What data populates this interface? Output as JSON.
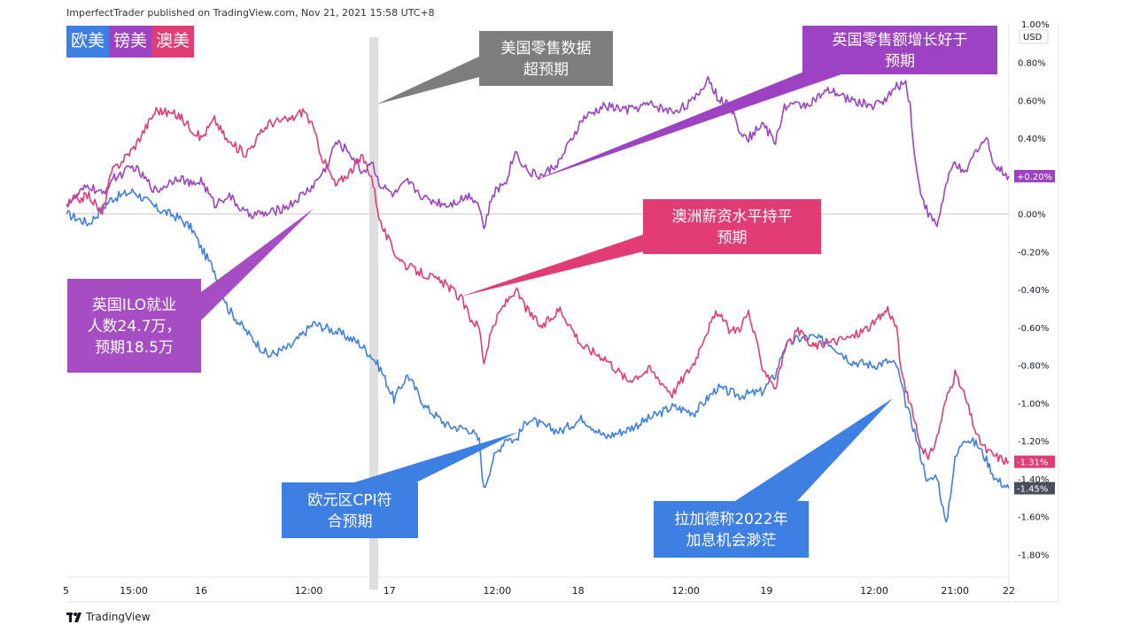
{
  "publisher": "ImperfectTrader published on TradingView.com, Nov 21, 2021 15:58 UTC+8",
  "footer": {
    "brand": "TradingView",
    "logo_icon": "tradingview-logo-icon"
  },
  "chart_data": {
    "type": "line",
    "unit_label": "USD",
    "y_ticks": [
      "1.00%",
      "0.80%",
      "0.60%",
      "0.40%",
      "0.20%",
      "0.00%",
      "-0.20%",
      "-0.40%",
      "-0.60%",
      "-0.80%",
      "-1.00%",
      "-1.20%",
      "-1.40%",
      "-1.60%",
      "-1.80%"
    ],
    "y_tick_values": [
      1.0,
      0.8,
      0.6,
      0.4,
      0.2,
      0.0,
      -0.2,
      -0.4,
      -0.6,
      -0.8,
      -1.0,
      -1.2,
      -1.4,
      -1.6,
      -1.8
    ],
    "ylim": [
      -1.92,
      1.0
    ],
    "x_ticks": [
      {
        "label": "5",
        "t": 0
      },
      {
        "label": "15:00",
        "t": 15
      },
      {
        "label": "16",
        "t": 30
      },
      {
        "label": "12:00",
        "t": 54
      },
      {
        "label": "17",
        "t": 72
      },
      {
        "label": "12:00",
        "t": 96
      },
      {
        "label": "18",
        "t": 114
      },
      {
        "label": "12:00",
        "t": 138
      },
      {
        "label": "19",
        "t": 156
      },
      {
        "label": "12:00",
        "t": 180
      },
      {
        "label": "21:00",
        "t": 198
      },
      {
        "label": "22",
        "t": 210
      }
    ],
    "xlim": [
      0,
      210
    ],
    "event_band_t": 68.5,
    "series": [
      {
        "name": "欧美",
        "color": "#3d7fe3",
        "last_label": "-1.45%",
        "x": [
          0,
          5,
          10,
          15,
          20,
          25,
          28,
          30,
          33,
          36,
          40,
          45,
          50,
          55,
          60,
          65,
          68,
          70,
          73,
          76,
          80,
          85,
          90,
          92,
          93,
          95,
          98,
          100,
          103,
          106,
          110,
          115,
          120,
          125,
          130,
          135,
          140,
          145,
          150,
          155,
          158,
          160,
          163,
          166,
          170,
          175,
          180,
          183,
          185,
          187,
          189,
          190,
          192,
          194,
          196,
          198,
          200,
          203,
          205,
          207,
          210
        ],
        "y": [
          0.0,
          -0.05,
          0.08,
          0.12,
          0.03,
          -0.02,
          -0.08,
          -0.18,
          -0.3,
          -0.5,
          -0.62,
          -0.75,
          -0.7,
          -0.58,
          -0.62,
          -0.68,
          -0.75,
          -0.82,
          -0.98,
          -0.85,
          -1.02,
          -1.12,
          -1.14,
          -1.2,
          -1.46,
          -1.3,
          -1.18,
          -1.2,
          -1.08,
          -1.12,
          -1.15,
          -1.08,
          -1.18,
          -1.14,
          -1.08,
          -1.02,
          -1.05,
          -0.92,
          -0.96,
          -0.94,
          -0.85,
          -0.7,
          -0.66,
          -0.65,
          -0.68,
          -0.78,
          -0.8,
          -0.78,
          -0.8,
          -1.0,
          -1.15,
          -1.25,
          -1.42,
          -1.38,
          -1.65,
          -1.3,
          -1.18,
          -1.22,
          -1.3,
          -1.4,
          -1.45
        ]
      },
      {
        "name": "镑美",
        "color": "#9c42c2",
        "last_label": "+0.20%",
        "x": [
          0,
          5,
          8,
          10,
          15,
          20,
          25,
          28,
          30,
          33,
          36,
          40,
          45,
          50,
          55,
          58,
          60,
          63,
          66,
          68,
          70,
          73,
          76,
          80,
          85,
          90,
          92,
          93,
          95,
          98,
          100,
          103,
          106,
          110,
          115,
          120,
          125,
          130,
          135,
          140,
          143,
          145,
          148,
          150,
          152,
          155,
          158,
          160,
          165,
          170,
          175,
          180,
          183,
          185,
          187,
          188,
          189,
          190,
          192,
          194,
          196,
          198,
          200,
          203,
          205,
          207,
          210
        ],
        "y": [
          0.05,
          0.15,
          0.1,
          0.18,
          0.25,
          0.12,
          0.2,
          0.15,
          0.18,
          0.05,
          0.1,
          0.0,
          0.0,
          0.05,
          0.15,
          0.25,
          0.38,
          0.33,
          0.22,
          0.28,
          0.15,
          0.1,
          0.17,
          0.08,
          0.05,
          0.1,
          0.05,
          -0.08,
          0.1,
          0.18,
          0.33,
          0.22,
          0.2,
          0.28,
          0.5,
          0.57,
          0.55,
          0.58,
          0.54,
          0.6,
          0.72,
          0.62,
          0.56,
          0.45,
          0.4,
          0.48,
          0.38,
          0.57,
          0.58,
          0.65,
          0.6,
          0.57,
          0.62,
          0.67,
          0.7,
          0.58,
          0.3,
          0.15,
          0.0,
          -0.06,
          0.15,
          0.28,
          0.2,
          0.35,
          0.4,
          0.25,
          0.2
        ]
      },
      {
        "name": "澳美",
        "color": "#e23c74",
        "last_label": "-1.31%",
        "x": [
          0,
          5,
          8,
          10,
          15,
          20,
          25,
          28,
          30,
          33,
          36,
          40,
          45,
          50,
          53,
          55,
          57,
          60,
          63,
          66,
          68,
          70,
          73,
          76,
          80,
          85,
          88,
          90,
          92,
          93,
          95,
          97,
          100,
          103,
          106,
          110,
          115,
          120,
          125,
          130,
          135,
          140,
          142,
          145,
          148,
          150,
          152,
          155,
          158,
          160,
          163,
          166,
          170,
          175,
          180,
          183,
          185,
          186,
          188,
          189,
          190,
          192,
          194,
          196,
          198,
          200,
          203,
          205,
          207,
          210
        ],
        "y": [
          0.05,
          0.1,
          0.0,
          0.22,
          0.35,
          0.55,
          0.52,
          0.45,
          0.4,
          0.5,
          0.38,
          0.32,
          0.48,
          0.5,
          0.55,
          0.45,
          0.3,
          0.15,
          0.22,
          0.3,
          0.2,
          -0.05,
          -0.2,
          -0.28,
          -0.32,
          -0.38,
          -0.45,
          -0.55,
          -0.6,
          -0.78,
          -0.6,
          -0.5,
          -0.4,
          -0.52,
          -0.6,
          -0.5,
          -0.7,
          -0.76,
          -0.88,
          -0.82,
          -0.95,
          -0.78,
          -0.65,
          -0.52,
          -0.62,
          -0.6,
          -0.52,
          -0.8,
          -0.92,
          -0.72,
          -0.62,
          -0.7,
          -0.68,
          -0.65,
          -0.58,
          -0.5,
          -0.6,
          -0.85,
          -1.0,
          -1.1,
          -1.2,
          -1.3,
          -1.18,
          -0.98,
          -0.85,
          -0.95,
          -1.18,
          -1.25,
          -1.28,
          -1.31
        ]
      }
    ],
    "annotations": [
      {
        "id": "us-retail",
        "lines": [
          "美国零售数据",
          "超预期"
        ],
        "color": "#7d7d7d"
      },
      {
        "id": "uk-retail",
        "lines": [
          "英国零售额增长好于",
          "预期"
        ],
        "color": "#9c42c2"
      },
      {
        "id": "au-wage",
        "lines": [
          "澳洲薪资水平持平",
          "预期"
        ],
        "color": "#e23c74"
      },
      {
        "id": "uk-ilo",
        "lines": [
          "英国ILO就业",
          "人数24.7万，",
          "预期18.5万"
        ],
        "color": "#a64dc4"
      },
      {
        "id": "eu-cpi",
        "lines": [
          "欧元区CPI符",
          "合预期"
        ],
        "color": "#3d7fe3"
      },
      {
        "id": "lagarde",
        "lines": [
          "拉加德称2022年",
          "加息机会渺茫"
        ],
        "color": "#3d7fe3"
      }
    ]
  }
}
